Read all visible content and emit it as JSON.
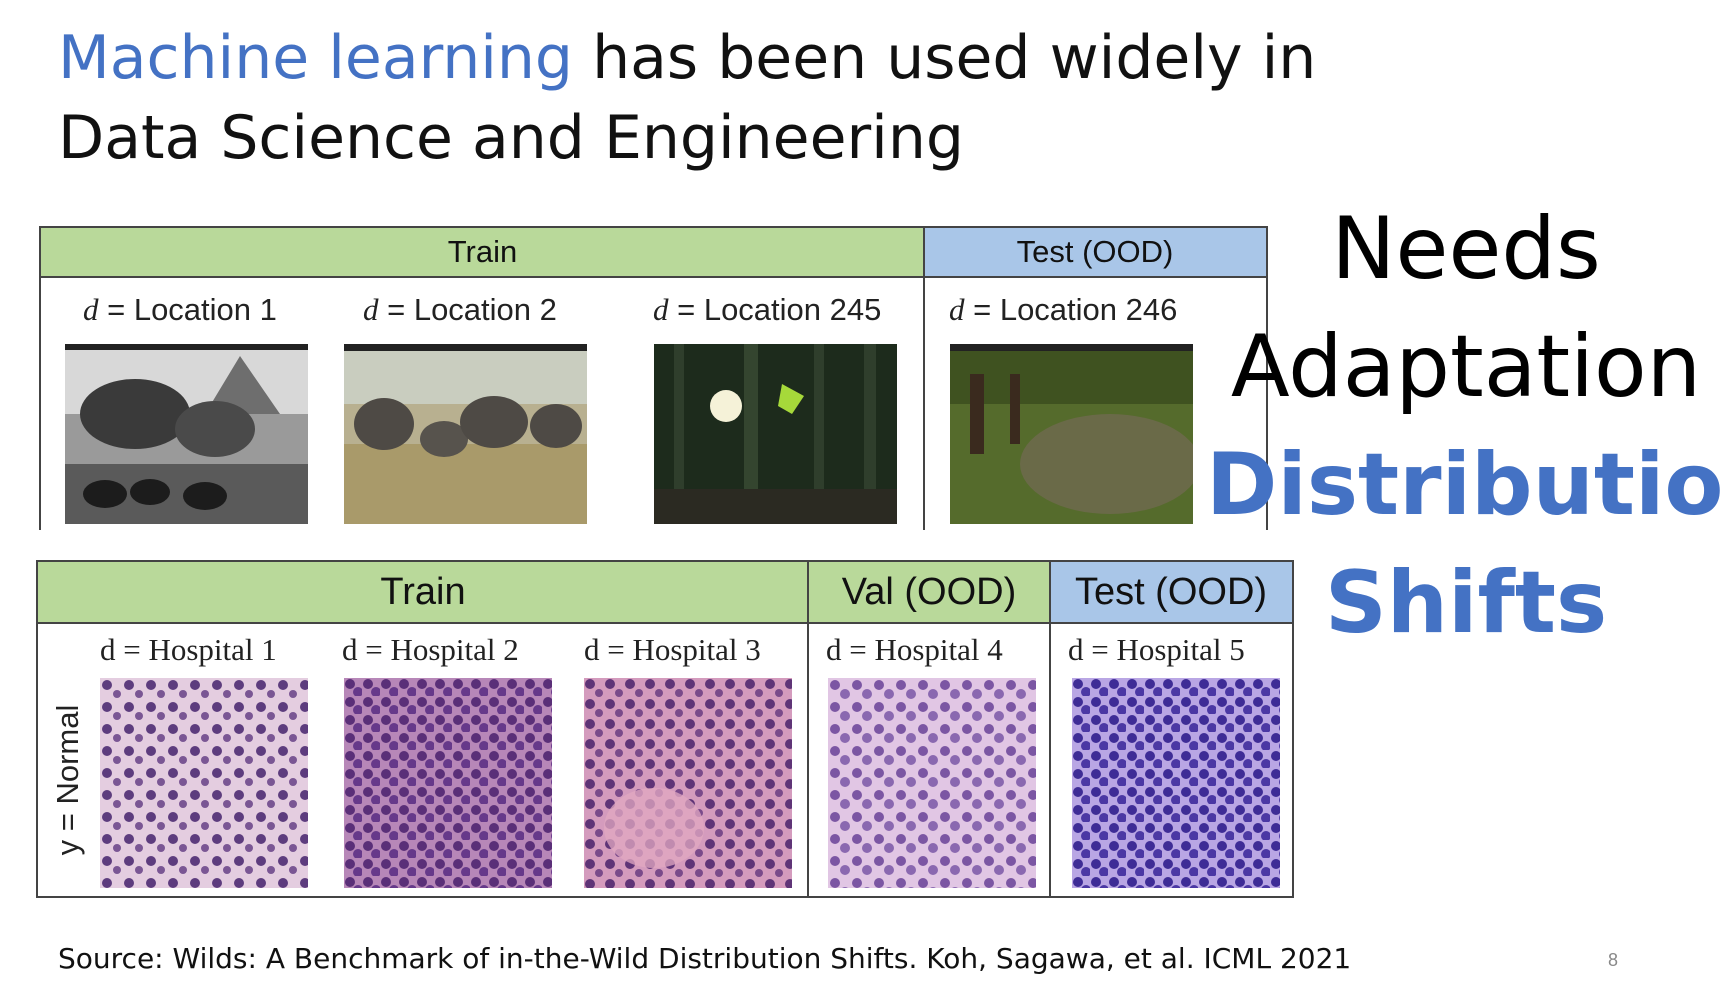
{
  "title": {
    "highlight": "Machine learning",
    "rest_line1": " has been used widely in",
    "line2": "Data Science and Engineering"
  },
  "top_table": {
    "headers": {
      "train": "Train",
      "test": "Test (OOD)"
    },
    "columns": [
      {
        "var": "d",
        "eq": " = Location 1"
      },
      {
        "var": "d",
        "eq": " = Location 2"
      },
      {
        "var": "d",
        "eq": " = Location 245"
      },
      {
        "var": "d",
        "eq": " = Location 246"
      }
    ]
  },
  "bottom_table": {
    "headers": {
      "train": "Train",
      "val": "Val (OOD)",
      "test": "Test (OOD)"
    },
    "y_label": "y = Normal",
    "columns": [
      "d = Hospital 1",
      "d = Hospital 2",
      "d = Hospital 3",
      "d = Hospital 4",
      "d = Hospital 5"
    ]
  },
  "side_text": {
    "line1": "Needs",
    "line2": "Adaptation",
    "line3": "Distribution",
    "line4": "Shifts"
  },
  "colors": {
    "accent": "#4472c4",
    "train": "#b9d99a",
    "test": "#a9c6e8"
  },
  "source": "Source: Wilds: A Benchmark of in-the-Wild Distribution Shifts. Koh, Sagawa, et al. ICML 2021",
  "page_number": "8"
}
